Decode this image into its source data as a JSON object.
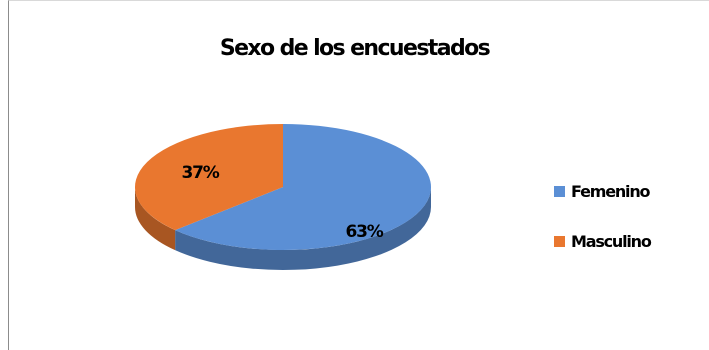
{
  "chart_data": {
    "type": "pie",
    "title": "Sexo de los encuestados",
    "categories": [
      "Femenino",
      "Masculino"
    ],
    "values": [
      63,
      37
    ],
    "data_labels": [
      "63%",
      "37%"
    ],
    "colors": [
      "#5b8fd5",
      "#e9772f"
    ],
    "style": "3d",
    "legend_position": "right"
  }
}
